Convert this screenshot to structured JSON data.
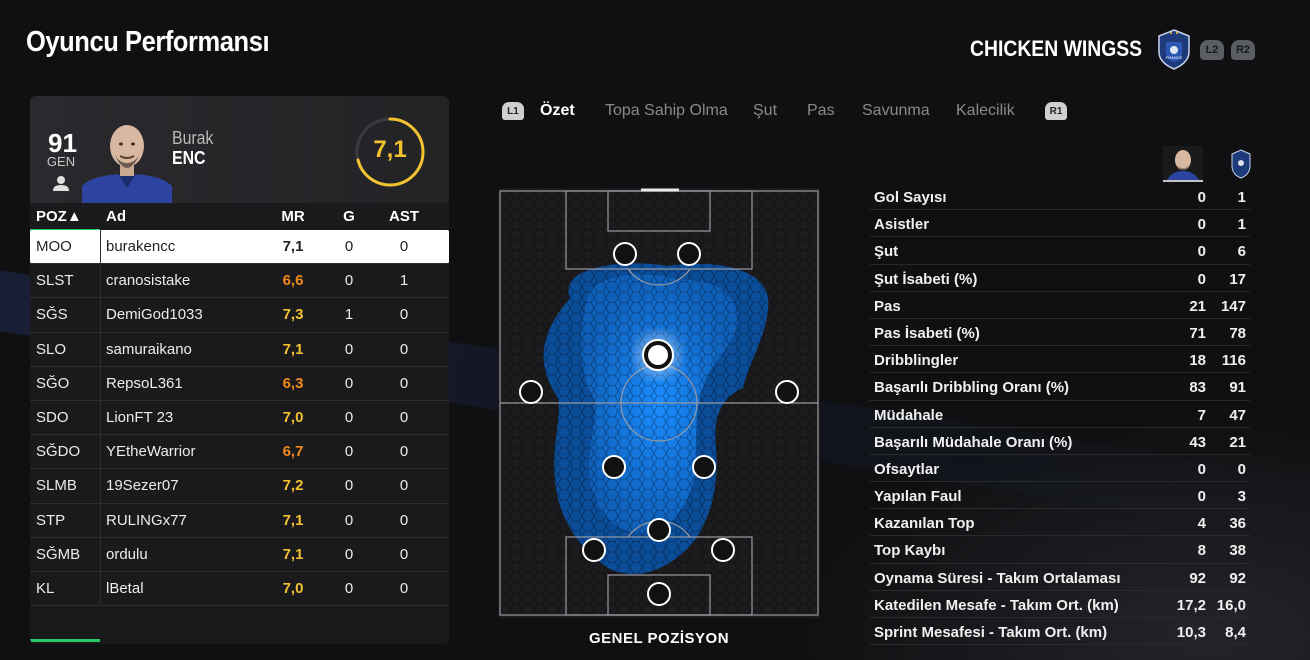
{
  "page_title": "Oyuncu Performansı",
  "team": {
    "name": "CHICKEN WINGSS",
    "crest_icon": "france-crest-icon",
    "buttons": [
      "L2",
      "R2"
    ]
  },
  "player": {
    "overall": "91",
    "overall_label": "GEN",
    "first_name": "Burak",
    "last_name": "ENC",
    "rating": "7,1",
    "rating_fraction": 0.71
  },
  "table": {
    "headers": {
      "pos": "POZ▲",
      "name": "Ad",
      "mr": "MR",
      "g": "G",
      "ast": "AST"
    },
    "rows": [
      {
        "pos": "MOO",
        "name": "burakencc",
        "mr": "7,1",
        "g": "0",
        "ast": "0",
        "mr_color": "yellow",
        "selected": true
      },
      {
        "pos": "SLST",
        "name": "cranosistake",
        "mr": "6,6",
        "g": "0",
        "ast": "1",
        "mr_color": "orange"
      },
      {
        "pos": "SĞS",
        "name": "DemiGod1033",
        "mr": "7,3",
        "g": "1",
        "ast": "0",
        "mr_color": "yellow"
      },
      {
        "pos": "SLO",
        "name": "samuraikano",
        "mr": "7,1",
        "g": "0",
        "ast": "0",
        "mr_color": "yellow"
      },
      {
        "pos": "SĞO",
        "name": "RepsoL361",
        "mr": "6,3",
        "g": "0",
        "ast": "0",
        "mr_color": "orange"
      },
      {
        "pos": "SDO",
        "name": "LionFT 23",
        "mr": "7,0",
        "g": "0",
        "ast": "0",
        "mr_color": "yellow"
      },
      {
        "pos": "SĞDO",
        "name": "YEtheWarrior",
        "mr": "6,7",
        "g": "0",
        "ast": "0",
        "mr_color": "orange"
      },
      {
        "pos": "SLMB",
        "name": "19Sezer07",
        "mr": "7,2",
        "g": "0",
        "ast": "0",
        "mr_color": "yellow"
      },
      {
        "pos": "STP",
        "name": "RULINGx77",
        "mr": "7,1",
        "g": "0",
        "ast": "0",
        "mr_color": "yellow"
      },
      {
        "pos": "SĞMB",
        "name": "ordulu",
        "mr": "7,1",
        "g": "0",
        "ast": "0",
        "mr_color": "yellow"
      },
      {
        "pos": "KL",
        "name": "lBetal",
        "mr": "7,0",
        "g": "0",
        "ast": "0",
        "mr_color": "yellow"
      }
    ]
  },
  "tabs": {
    "left_button": "L1",
    "right_button": "R1",
    "items": [
      "Özet",
      "Topa Sahip Olma",
      "Şut",
      "Pas",
      "Savunma",
      "Kalecilik"
    ],
    "active": "Özet"
  },
  "pitch": {
    "caption": "GENEL POZİSYON"
  },
  "stats": {
    "rows": [
      {
        "label": "Gol Sayısı",
        "player": "0",
        "team": "1"
      },
      {
        "label": "Asistler",
        "player": "0",
        "team": "1"
      },
      {
        "label": "Şut",
        "player": "0",
        "team": "6"
      },
      {
        "label": "Şut İsabeti (%)",
        "player": "0",
        "team": "17"
      },
      {
        "label": "Pas",
        "player": "21",
        "team": "147"
      },
      {
        "label": "Pas İsabeti (%)",
        "player": "71",
        "team": "78"
      },
      {
        "label": "Dribblingler",
        "player": "18",
        "team": "116"
      },
      {
        "label": "Başarılı Dribbling Oranı (%)",
        "player": "83",
        "team": "91"
      },
      {
        "label": "Müdahale",
        "player": "7",
        "team": "47"
      },
      {
        "label": "Başarılı Müdahale Oranı (%)",
        "player": "43",
        "team": "21"
      },
      {
        "label": "Ofsaytlar",
        "player": "0",
        "team": "0"
      },
      {
        "label": "Yapılan Faul",
        "player": "0",
        "team": "3"
      },
      {
        "label": "Kazanılan Top",
        "player": "4",
        "team": "36"
      },
      {
        "label": "Top Kaybı",
        "player": "8",
        "team": "38"
      },
      {
        "label": "Oynama Süresi - Takım Ortalaması",
        "player": "92",
        "team": "92"
      },
      {
        "label": "Katedilen Mesafe - Takım Ort. (km)",
        "player": "17,2",
        "team": "16,0"
      },
      {
        "label": "Sprint Mesafesi - Takım Ort. (km)",
        "player": "10,3",
        "team": "8,4"
      }
    ]
  },
  "colors": {
    "accent_green": "#25c966",
    "rating_yellow": "#f2c230",
    "rating_orange": "#f08a1c",
    "heatmap_blue": "#1a8cff"
  }
}
